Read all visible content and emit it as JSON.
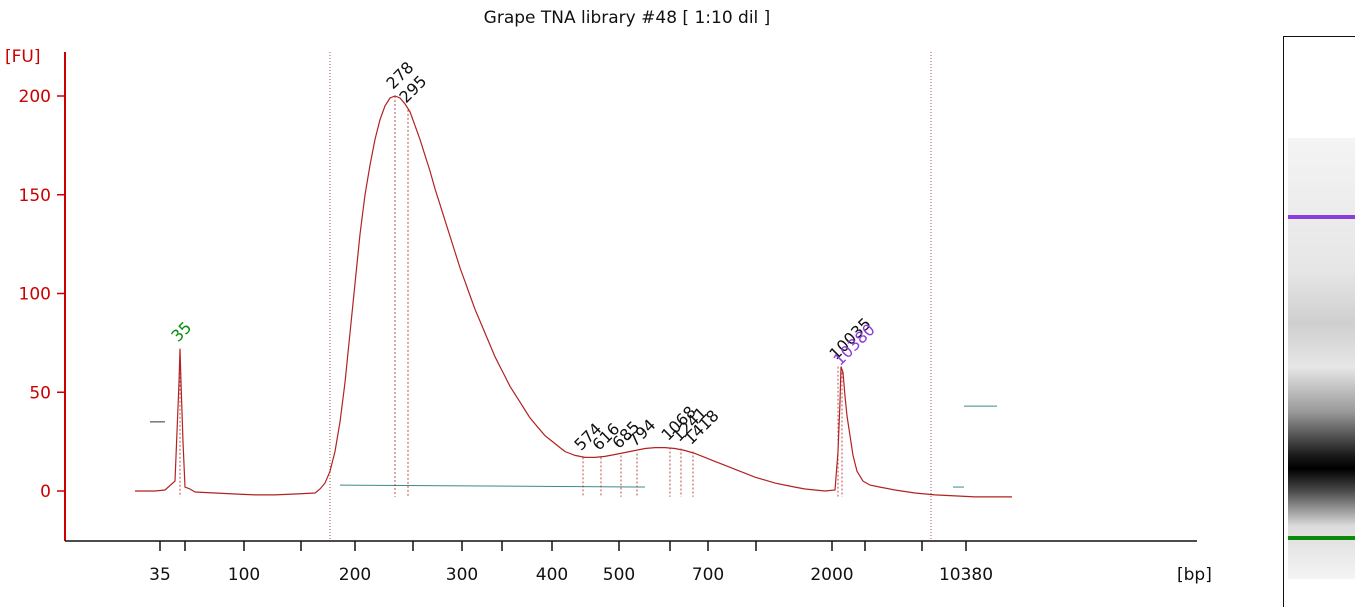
{
  "chart_data": {
    "type": "line",
    "title": "Grape TNA library #48  [ 1:10 dil ]",
    "ylabel": "[FU]",
    "xlabel": "[bp]",
    "ylim": [
      -25,
      210
    ],
    "yticks": [
      0,
      50,
      100,
      150,
      200
    ],
    "xticks": [
      "35",
      "100",
      "200",
      "300",
      "400",
      "500",
      "700",
      "2000",
      "10380"
    ],
    "series": [
      {
        "points": [
          [
            0,
            0
          ],
          [
            20,
            0
          ],
          [
            30,
            0.5
          ],
          [
            40,
            5
          ],
          [
            42,
            30
          ],
          [
            44,
            55
          ],
          [
            45,
            72
          ],
          [
            46,
            55
          ],
          [
            48,
            25
          ],
          [
            50,
            2
          ],
          [
            55,
            1
          ],
          [
            60,
            -0.5
          ],
          [
            80,
            -1
          ],
          [
            100,
            -1.5
          ],
          [
            120,
            -2
          ],
          [
            140,
            -2
          ],
          [
            160,
            -1.5
          ],
          [
            180,
            -1
          ],
          [
            185,
            1
          ],
          [
            190,
            4
          ],
          [
            195,
            10
          ],
          [
            200,
            20
          ],
          [
            205,
            35
          ],
          [
            210,
            55
          ],
          [
            215,
            80
          ],
          [
            220,
            105
          ],
          [
            225,
            130
          ],
          [
            230,
            150
          ],
          [
            235,
            165
          ],
          [
            240,
            178
          ],
          [
            245,
            188
          ],
          [
            250,
            195
          ],
          [
            255,
            199
          ],
          [
            260,
            200
          ],
          [
            265,
            199
          ],
          [
            270,
            196
          ],
          [
            275,
            192
          ],
          [
            280,
            185
          ],
          [
            285,
            178
          ],
          [
            290,
            170
          ],
          [
            295,
            162
          ],
          [
            300,
            153
          ],
          [
            305,
            145
          ],
          [
            310,
            137
          ],
          [
            315,
            129
          ],
          [
            320,
            121
          ],
          [
            325,
            113
          ],
          [
            330,
            106
          ],
          [
            335,
            99
          ],
          [
            340,
            92
          ],
          [
            345,
            86
          ],
          [
            350,
            80
          ],
          [
            355,
            74
          ],
          [
            360,
            68
          ],
          [
            365,
            63
          ],
          [
            370,
            58
          ],
          [
            375,
            53
          ],
          [
            380,
            49
          ],
          [
            385,
            45
          ],
          [
            390,
            41
          ],
          [
            395,
            37
          ],
          [
            400,
            34
          ],
          [
            405,
            31
          ],
          [
            410,
            28
          ],
          [
            415,
            26
          ],
          [
            420,
            24
          ],
          [
            425,
            22
          ],
          [
            430,
            20
          ],
          [
            435,
            19
          ],
          [
            440,
            18
          ],
          [
            445,
            17.5
          ],
          [
            450,
            17
          ],
          [
            460,
            17
          ],
          [
            470,
            17.5
          ],
          [
            480,
            18.5
          ],
          [
            490,
            19.5
          ],
          [
            500,
            20.5
          ],
          [
            510,
            21.5
          ],
          [
            520,
            22
          ],
          [
            530,
            22
          ],
          [
            540,
            21.5
          ],
          [
            550,
            20.5
          ],
          [
            560,
            19
          ],
          [
            570,
            17
          ],
          [
            580,
            15
          ],
          [
            590,
            13
          ],
          [
            600,
            11
          ],
          [
            610,
            9
          ],
          [
            620,
            7
          ],
          [
            630,
            5.5
          ],
          [
            640,
            4
          ],
          [
            650,
            3
          ],
          [
            660,
            2
          ],
          [
            670,
            1
          ],
          [
            680,
            0.5
          ],
          [
            690,
            0
          ],
          [
            700,
            0.5
          ],
          [
            703,
            20
          ],
          [
            705,
            45
          ],
          [
            706,
            63
          ],
          [
            708,
            60
          ],
          [
            710,
            48
          ],
          [
            712,
            38
          ],
          [
            715,
            28
          ],
          [
            718,
            18
          ],
          [
            722,
            10
          ],
          [
            728,
            5
          ],
          [
            735,
            3
          ],
          [
            745,
            2
          ],
          [
            760,
            0.5
          ],
          [
            780,
            -1
          ],
          [
            800,
            -2
          ],
          [
            820,
            -2.5
          ],
          [
            840,
            -3
          ],
          [
            860,
            -3
          ],
          [
            877,
            -3
          ]
        ]
      }
    ],
    "peak_labels": [
      {
        "label": "35",
        "x": 45,
        "y": 72,
        "color": "#0a8a0a"
      },
      {
        "label": "278",
        "x": 260,
        "y": 200,
        "color": "#111111"
      },
      {
        "label": "295",
        "x": 273,
        "y": 193,
        "color": "#111111"
      },
      {
        "label": "574",
        "x": 448,
        "y": 17,
        "color": "#111111"
      },
      {
        "label": "616",
        "x": 466,
        "y": 17,
        "color": "#111111"
      },
      {
        "label": "685",
        "x": 486,
        "y": 18,
        "color": "#111111"
      },
      {
        "label": "794",
        "x": 502,
        "y": 19,
        "color": "#111111"
      },
      {
        "label": "1068",
        "x": 535,
        "y": 22,
        "color": "#111111"
      },
      {
        "label": "1241",
        "x": 546,
        "y": 21.5,
        "color": "#111111"
      },
      {
        "label": "1418",
        "x": 558,
        "y": 20,
        "color": "#111111"
      },
      {
        "label": "10035",
        "x": 703,
        "y": 63,
        "color": "#111111"
      },
      {
        "label": "10380",
        "x": 707,
        "y": 60,
        "color": "#8a3cdc"
      }
    ],
    "grid": false,
    "colors": {
      "trace": "#b22222",
      "axis": "#cc0000",
      "text": "#111111",
      "marker_green": "#0a8a0a",
      "marker_purple": "#8a3cdc"
    }
  },
  "gel": {
    "upper_marker_color": "#8a3cdc",
    "lower_marker_color": "#0a8a0a"
  }
}
